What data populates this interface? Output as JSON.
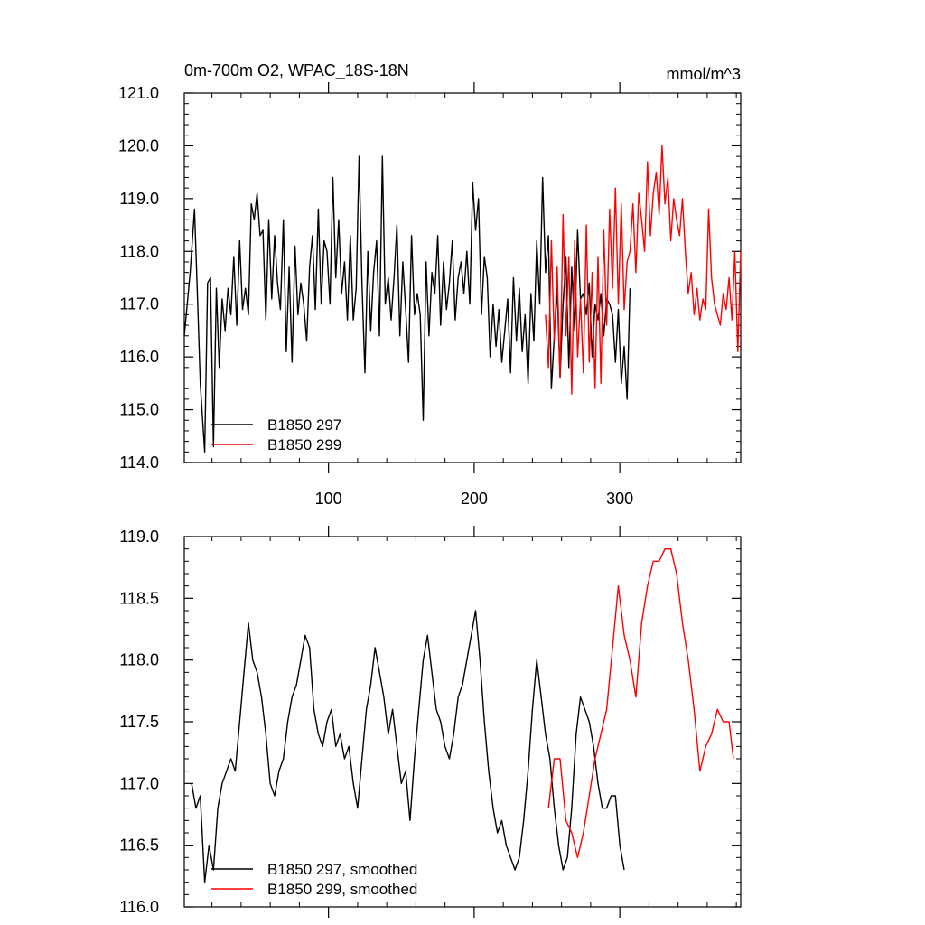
{
  "chart_data": [
    {
      "type": "line",
      "title": "0m-700m O2, WPAC_18S-18N",
      "units_label": "mmol/m^3",
      "xlabel": "",
      "ylabel": "",
      "xlim": [
        1,
        383
      ],
      "ylim": [
        114.0,
        121.0
      ],
      "xticks": [
        100,
        200,
        300
      ],
      "xtick_labels": [
        "100",
        "200",
        "300"
      ],
      "yticks": [
        114.0,
        115.0,
        116.0,
        117.0,
        118.0,
        119.0,
        120.0,
        121.0
      ],
      "ytick_labels": [
        "114.0",
        "115.0",
        "116.0",
        "117.0",
        "118.0",
        "119.0",
        "120.0",
        "121.0"
      ],
      "legend_position": "bottom-left",
      "series": [
        {
          "name": "B1850 297",
          "color": "#000000",
          "x": [
            1,
            5,
            8,
            10,
            12,
            15,
            17,
            19,
            21,
            23,
            25,
            27,
            29,
            31,
            33,
            35,
            37,
            39,
            41,
            43,
            45,
            47,
            49,
            51,
            53,
            55,
            57,
            59,
            61,
            63,
            65,
            67,
            69,
            71,
            73,
            75,
            77,
            79,
            81,
            83,
            85,
            87,
            89,
            91,
            93,
            95,
            97,
            99,
            101,
            103,
            105,
            107,
            109,
            111,
            113,
            115,
            117,
            119,
            121,
            123,
            125,
            127,
            129,
            131,
            133,
            135,
            137,
            139,
            141,
            143,
            145,
            147,
            149,
            151,
            153,
            155,
            157,
            159,
            161,
            163,
            165,
            167,
            169,
            171,
            173,
            175,
            177,
            179,
            181,
            183,
            185,
            187,
            189,
            191,
            193,
            195,
            197,
            199,
            201,
            203,
            205,
            207,
            209,
            211,
            213,
            215,
            217,
            219,
            221,
            223,
            225,
            227,
            229,
            231,
            233,
            235,
            237,
            239,
            241,
            243,
            245,
            247,
            249,
            251,
            253,
            255,
            257,
            259,
            261,
            263,
            265,
            267,
            269,
            271,
            273,
            275,
            277,
            279,
            281,
            283,
            285,
            287,
            289,
            291,
            293,
            295,
            297,
            299,
            301,
            303,
            305,
            307
          ],
          "values": [
            116.4,
            117.6,
            118.8,
            117.2,
            115.5,
            114.2,
            117.4,
            117.5,
            114.3,
            117.3,
            115.8,
            117.1,
            116.5,
            117.3,
            116.8,
            117.9,
            116.6,
            118.2,
            116.9,
            117.3,
            116.8,
            118.9,
            118.6,
            119.1,
            118.3,
            118.4,
            116.7,
            118.6,
            117.1,
            118.3,
            117.4,
            116.9,
            118.6,
            116.1,
            117.7,
            115.9,
            118.1,
            116.8,
            117.4,
            117.0,
            116.3,
            117.7,
            118.3,
            116.9,
            118.8,
            117.0,
            118.2,
            118.0,
            117.0,
            119.4,
            117.5,
            118.6,
            117.2,
            117.8,
            116.7,
            118.3,
            116.7,
            117.3,
            119.8,
            117.4,
            115.7,
            118.0,
            116.5,
            117.6,
            118.2,
            116.4,
            119.8,
            117.0,
            117.5,
            116.7,
            117.5,
            118.5,
            116.4,
            117.8,
            116.9,
            115.9,
            118.3,
            116.8,
            117.2,
            116.8,
            114.8,
            117.8,
            116.4,
            117.6,
            117.2,
            118.3,
            116.6,
            117.8,
            116.9,
            117.4,
            118.2,
            116.7,
            117.5,
            117.8,
            117.2,
            118.0,
            117.0,
            119.3,
            118.4,
            119.0,
            116.8,
            117.9,
            117.5,
            116.0,
            117.0,
            116.2,
            116.9,
            115.9,
            116.5,
            117.1,
            115.7,
            117.5,
            116.3,
            117.3,
            116.1,
            116.8,
            115.5,
            117.2,
            116.3,
            118.2,
            117.0,
            119.4,
            117.6,
            118.3,
            115.4,
            116.4,
            117.3,
            115.6,
            117.0,
            117.9,
            115.8,
            117.7,
            116.5,
            118.4,
            117.1,
            117.2,
            116.8,
            117.4,
            116.0,
            117.0,
            116.7,
            117.2,
            116.4,
            117.1,
            117.0,
            116.8,
            115.9,
            116.9,
            115.5,
            116.2,
            115.2,
            117.3
          ],
          "note": "values estimated from plot"
        },
        {
          "name": "B1850 299",
          "color": "#ff0000",
          "x": [
            249,
            251,
            253,
            255,
            257,
            259,
            261,
            263,
            265,
            267,
            269,
            271,
            273,
            275,
            277,
            279,
            281,
            283,
            285,
            287,
            289,
            291,
            293,
            295,
            297,
            299,
            301,
            303,
            305,
            307,
            309,
            311,
            313,
            315,
            317,
            319,
            321,
            323,
            325,
            327,
            329,
            331,
            333,
            335,
            337,
            339,
            341,
            343,
            345,
            347,
            349,
            351,
            353,
            355,
            357,
            359,
            361,
            363,
            365,
            367,
            369,
            371,
            373,
            375,
            377,
            379,
            381,
            383
          ],
          "values": [
            116.8,
            115.8,
            118.2,
            116.3,
            117.7,
            115.6,
            118.7,
            116.4,
            117.9,
            115.3,
            118.2,
            116.0,
            117.1,
            115.7,
            118.5,
            115.9,
            117.6,
            115.4,
            117.9,
            115.5,
            118.4,
            116.6,
            118.8,
            117.3,
            119.2,
            117.0,
            118.9,
            116.9,
            117.8,
            118.0,
            118.9,
            117.6,
            119.1,
            118.6,
            118.0,
            119.7,
            118.3,
            119.1,
            119.5,
            118.7,
            120.0,
            118.9,
            119.4,
            118.2,
            119.0,
            118.6,
            118.3,
            119.0,
            118.0,
            117.2,
            117.6,
            116.8,
            117.3,
            116.7,
            117.1,
            116.9,
            118.8,
            117.5,
            117.0,
            116.8,
            116.6,
            117.2,
            116.9,
            117.5,
            116.7,
            118.0,
            116.1,
            118.0
          ],
          "note": "values estimated from plot"
        }
      ]
    },
    {
      "type": "line",
      "title": "",
      "xlabel": "",
      "ylabel": "",
      "xlim": [
        1,
        383
      ],
      "ylim": [
        116.0,
        119.0
      ],
      "xticks": [
        100,
        200,
        300
      ],
      "xtick_labels": [],
      "yticks": [
        116.0,
        116.5,
        117.0,
        117.5,
        118.0,
        118.5,
        119.0
      ],
      "ytick_labels": [
        "116.0",
        "116.5",
        "117.0",
        "117.5",
        "118.0",
        "118.5",
        "119.0"
      ],
      "legend_position": "bottom-left",
      "series": [
        {
          "name": "B1850 297, smoothed",
          "color": "#000000",
          "x": [
            6,
            9,
            12,
            15,
            18,
            21,
            24,
            27,
            30,
            33,
            36,
            39,
            42,
            45,
            48,
            51,
            54,
            57,
            60,
            63,
            66,
            69,
            72,
            75,
            78,
            81,
            84,
            87,
            90,
            93,
            96,
            99,
            102,
            105,
            108,
            111,
            114,
            117,
            120,
            123,
            126,
            129,
            132,
            135,
            138,
            141,
            144,
            147,
            150,
            153,
            156,
            159,
            162,
            165,
            168,
            171,
            174,
            177,
            180,
            183,
            186,
            189,
            192,
            195,
            198,
            201,
            204,
            207,
            210,
            213,
            216,
            219,
            222,
            225,
            228,
            231,
            234,
            237,
            240,
            243,
            246,
            249,
            252,
            255,
            258,
            261,
            264,
            267,
            270,
            273,
            276,
            279,
            282,
            285,
            288,
            291,
            294,
            297,
            300,
            303
          ],
          "values": [
            117.0,
            116.8,
            116.9,
            116.2,
            116.5,
            116.3,
            116.8,
            117.0,
            117.1,
            117.2,
            117.1,
            117.5,
            117.9,
            118.3,
            118.0,
            117.9,
            117.7,
            117.4,
            117.0,
            116.9,
            117.1,
            117.2,
            117.5,
            117.7,
            117.8,
            118.0,
            118.2,
            118.1,
            117.6,
            117.4,
            117.3,
            117.5,
            117.6,
            117.3,
            117.4,
            117.2,
            117.3,
            117.0,
            116.8,
            117.2,
            117.6,
            117.8,
            118.1,
            117.9,
            117.7,
            117.4,
            117.6,
            117.3,
            117.0,
            117.1,
            116.7,
            117.2,
            117.6,
            118.0,
            118.2,
            117.9,
            117.6,
            117.5,
            117.3,
            117.2,
            117.4,
            117.7,
            117.8,
            118.0,
            118.2,
            118.4,
            118.0,
            117.5,
            117.1,
            116.8,
            116.6,
            116.7,
            116.5,
            116.4,
            116.3,
            116.4,
            116.7,
            117.1,
            117.6,
            118.0,
            117.7,
            117.4,
            117.2,
            116.8,
            116.5,
            116.3,
            116.4,
            116.8,
            117.4,
            117.7,
            117.6,
            117.5,
            117.3,
            117.0,
            116.8,
            116.8,
            116.9,
            116.9,
            116.5,
            116.3
          ],
          "note": "values estimated from plot"
        },
        {
          "name": "B1850 299, smoothed",
          "color": "#ff0000",
          "x": [
            251,
            255,
            259,
            263,
            267,
            271,
            275,
            279,
            283,
            287,
            291,
            295,
            299,
            303,
            307,
            311,
            315,
            319,
            323,
            327,
            331,
            335,
            339,
            343,
            347,
            351,
            355,
            359,
            363,
            367,
            371,
            375,
            378
          ],
          "values": [
            116.8,
            117.2,
            117.2,
            116.7,
            116.6,
            116.4,
            116.6,
            116.9,
            117.2,
            117.4,
            117.6,
            118.1,
            118.6,
            118.2,
            118.0,
            117.7,
            118.3,
            118.6,
            118.8,
            118.8,
            118.9,
            118.9,
            118.7,
            118.3,
            118.0,
            117.6,
            117.1,
            117.3,
            117.4,
            117.6,
            117.5,
            117.5,
            117.2
          ],
          "note": "values estimated from plot"
        }
      ]
    }
  ]
}
